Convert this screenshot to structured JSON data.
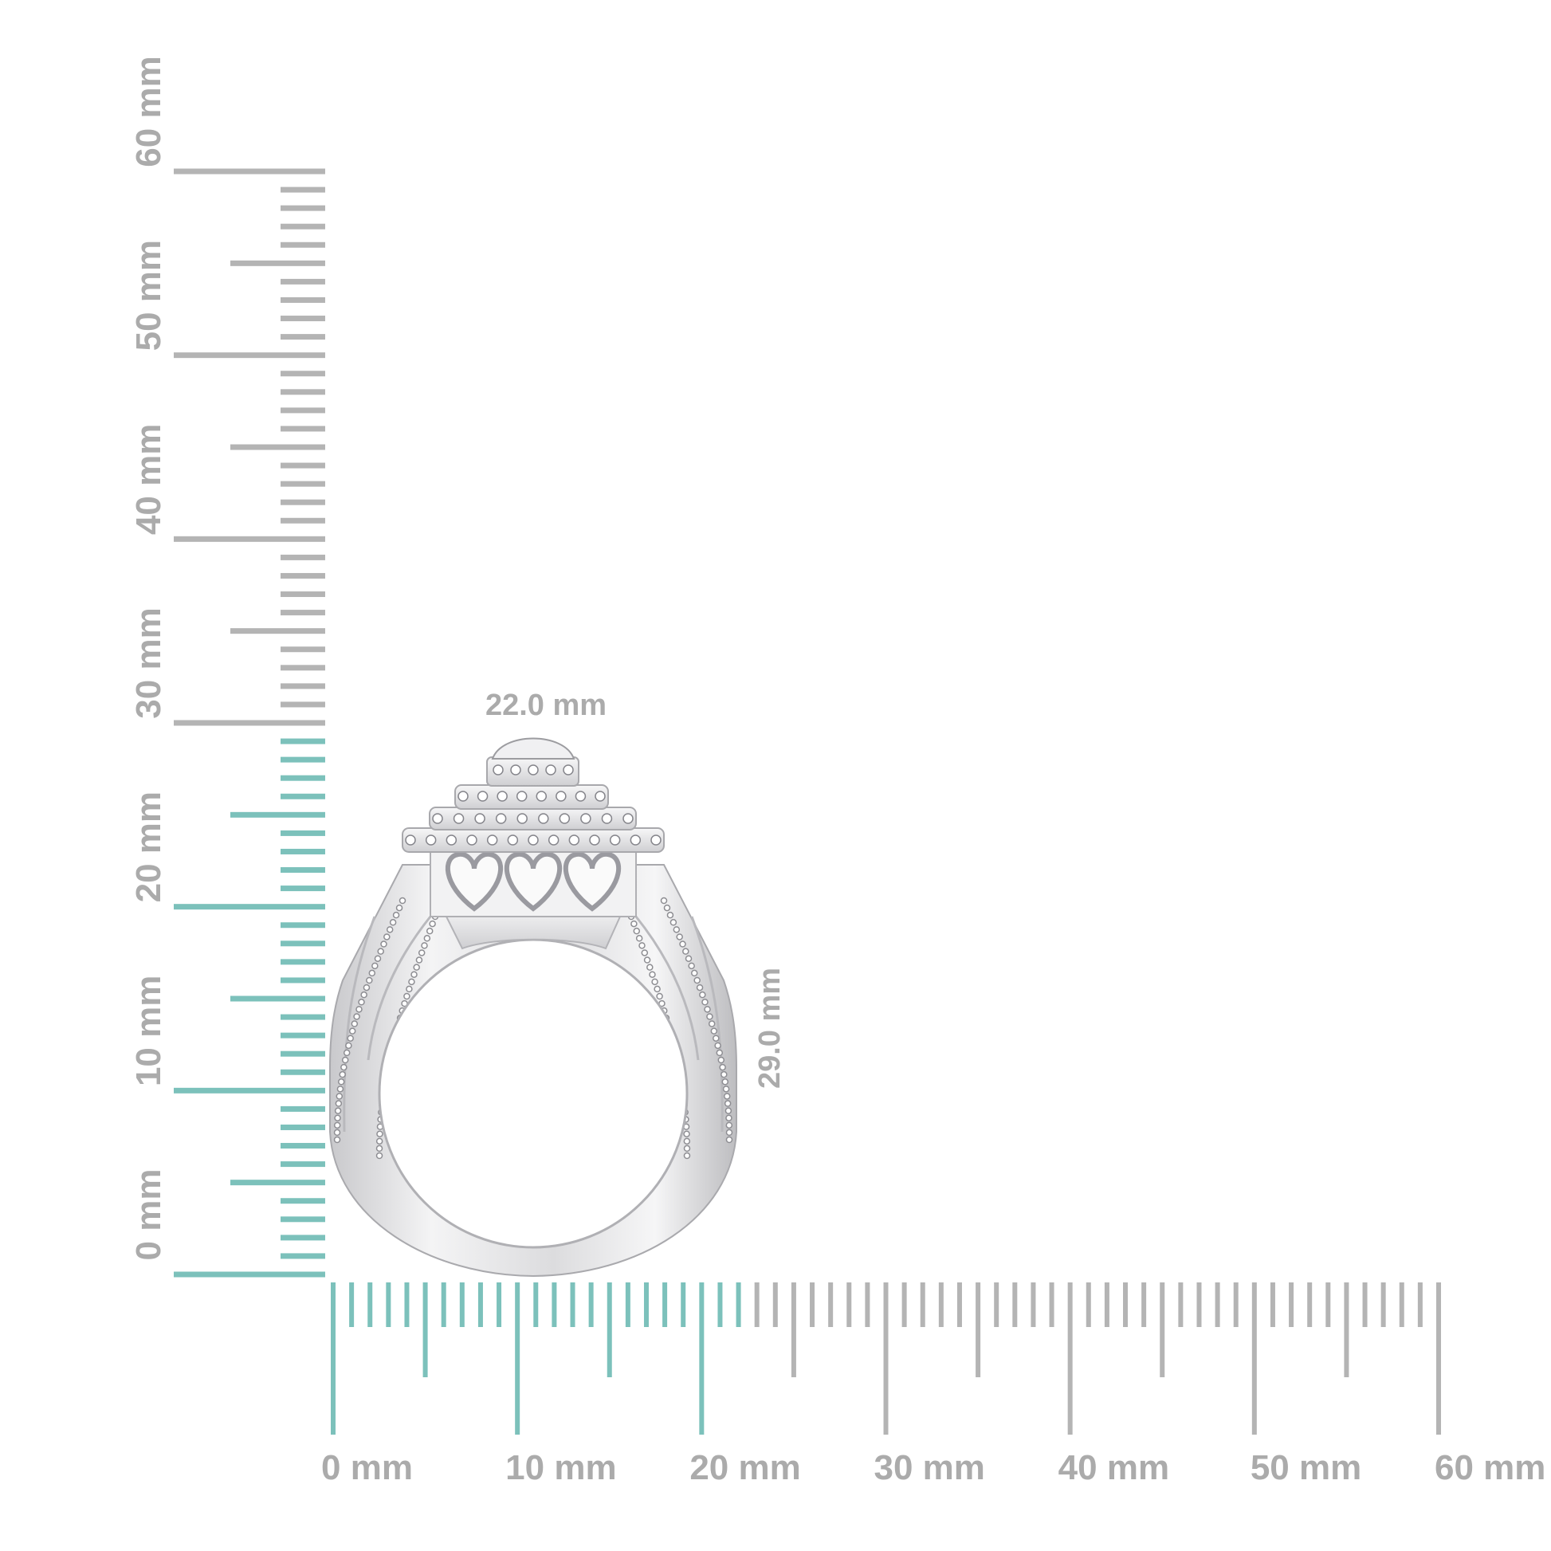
{
  "vertical_ruler": {
    "labels": [
      "0 mm",
      "10 mm",
      "20 mm",
      "30 mm",
      "40 mm",
      "50 mm",
      "60 mm"
    ],
    "highlight_mm": 29
  },
  "horizontal_ruler": {
    "labels": [
      "0 mm",
      "10 mm",
      "20 mm",
      "30 mm",
      "40 mm",
      "50 mm",
      "60 mm"
    ],
    "highlight_mm": 22
  },
  "dimensions": {
    "width_label": "22.0 mm",
    "height_label": "29.0 mm"
  },
  "colors": {
    "highlight": "#7cc1bb",
    "tick_gray": "#b4b4b4",
    "label_gray": "#ababab",
    "metal": "#e6e6e8"
  },
  "product": {
    "icon": "ring-image"
  }
}
